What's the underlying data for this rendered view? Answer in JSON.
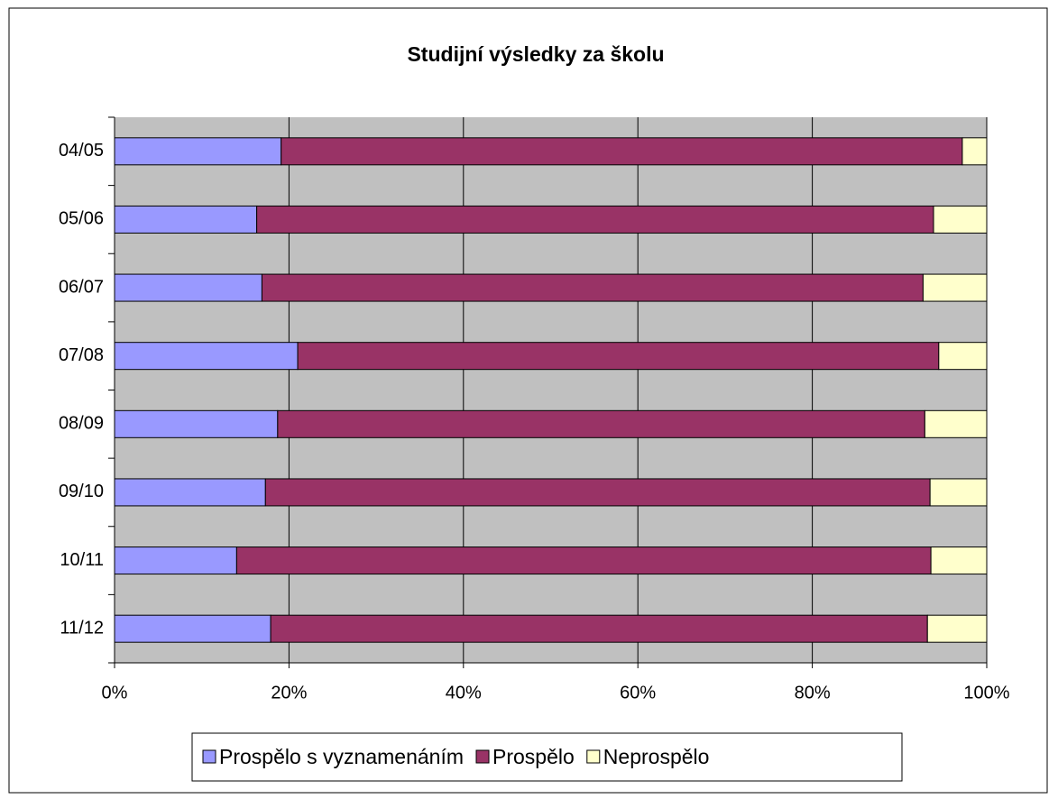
{
  "chart_data": {
    "type": "stacked-barh",
    "title": "Studijní výsledky za školu",
    "categories": [
      "04/05",
      "05/06",
      "06/07",
      "07/08",
      "08/09",
      "09/10",
      "10/11",
      "11/12"
    ],
    "series": [
      {
        "name": "Prospělo s vyznamenáním",
        "color": "#9999ff",
        "values": [
          19.1,
          16.3,
          16.9,
          21.0,
          18.7,
          17.3,
          14.0,
          17.9
        ]
      },
      {
        "name": "Prospělo",
        "color": "#993366",
        "values": [
          78.1,
          77.6,
          75.8,
          73.5,
          74.2,
          76.2,
          79.6,
          75.3
        ]
      },
      {
        "name": "Neprospělo",
        "color": "#ffffcc",
        "values": [
          2.8,
          6.1,
          7.3,
          5.5,
          7.1,
          6.5,
          6.4,
          6.8
        ]
      }
    ],
    "xlim": [
      0,
      100
    ],
    "xticks": [
      {
        "value": 0,
        "label": "0%"
      },
      {
        "value": 20,
        "label": "20%"
      },
      {
        "value": 40,
        "label": "40%"
      },
      {
        "value": 60,
        "label": "60%"
      },
      {
        "value": 80,
        "label": "80%"
      },
      {
        "value": 100,
        "label": "100%"
      }
    ],
    "grid": true,
    "legend": "bottom"
  }
}
